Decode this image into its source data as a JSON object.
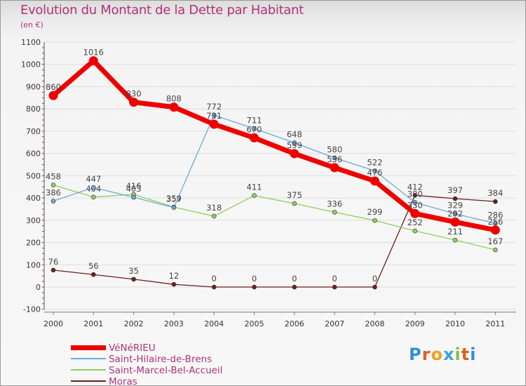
{
  "header": {
    "title": "Evolution du Montant de la Dette par Habitant",
    "unit": "(en €)"
  },
  "logo": {
    "text": "Proxiti",
    "colors": [
      "#2f8fd8",
      "#e35d1d",
      "#f0a020",
      "#3aa3e0",
      "#7cc24e",
      "#e35d1d",
      "#2f8fd8"
    ]
  },
  "chart_data": {
    "type": "line",
    "title": "Evolution du Montant de la Dette par Habitant",
    "subtitle": "(en €)",
    "xlabel": "",
    "ylabel": "",
    "x": [
      "2000",
      "2001",
      "2002",
      "2003",
      "2004",
      "2005",
      "2006",
      "2007",
      "2008",
      "2009",
      "2010",
      "2011"
    ],
    "ylim": [
      -100,
      1100
    ],
    "yticks": [
      "-100",
      "0",
      "100",
      "200",
      "300",
      "400",
      "500",
      "600",
      "700",
      "800",
      "900",
      "1000",
      "1100"
    ],
    "grid": true,
    "legend_position": "bottom-left",
    "series": [
      {
        "name": "Moras",
        "color": "#6b1f1f",
        "values": [
          76,
          56,
          35,
          12,
          0,
          0,
          0,
          0,
          0,
          412,
          397,
          384
        ],
        "labels": [
          "76",
          "56",
          "35",
          "12",
          "0",
          "0",
          "0",
          "0",
          "0",
          "412",
          "397",
          "384"
        ]
      },
      {
        "name": "Saint-Marcel-Bel-Accueil",
        "color": "#8fd05a",
        "values": [
          458,
          404,
          416,
          359,
          318,
          411,
          375,
          336,
          299,
          252,
          211,
          167
        ],
        "labels": [
          "458",
          "404",
          "416",
          "359",
          "318",
          "411",
          "375",
          "336",
          "299",
          "252",
          "211",
          "167"
        ]
      },
      {
        "name": "Saint-Hilaire-de-Brens",
        "color": "#6fa8d8",
        "values": [
          386,
          447,
          403,
          357,
          772,
          711,
          648,
          580,
          522,
          380,
          329,
          286
        ],
        "labels": [
          "386",
          "447",
          "403",
          "357",
          "772",
          "711",
          "648",
          "580",
          "522",
          "380",
          "329",
          "286"
        ]
      },
      {
        "name": "VéNéRIEU",
        "color": "#ee0000",
        "values": [
          860,
          1016,
          830,
          808,
          731,
          670,
          599,
          536,
          476,
          330,
          292,
          256
        ],
        "labels": [
          "860",
          "1016",
          "830",
          "808",
          "731",
          "670",
          "599",
          "536",
          "476",
          "330",
          "292",
          "256"
        ]
      }
    ],
    "legend": [
      {
        "name": "VéNéRIEU",
        "color": "#ee0000",
        "text_color": "#b0327a"
      },
      {
        "name": "Saint-Hilaire-de-Brens",
        "color": "#6fa8d8",
        "text_color": "#b0327a"
      },
      {
        "name": "Saint-Marcel-Bel-Accueil",
        "color": "#8fd05a",
        "text_color": "#b0327a"
      },
      {
        "name": "Moras",
        "color": "#6b1f1f",
        "text_color": "#b0327a"
      }
    ]
  }
}
